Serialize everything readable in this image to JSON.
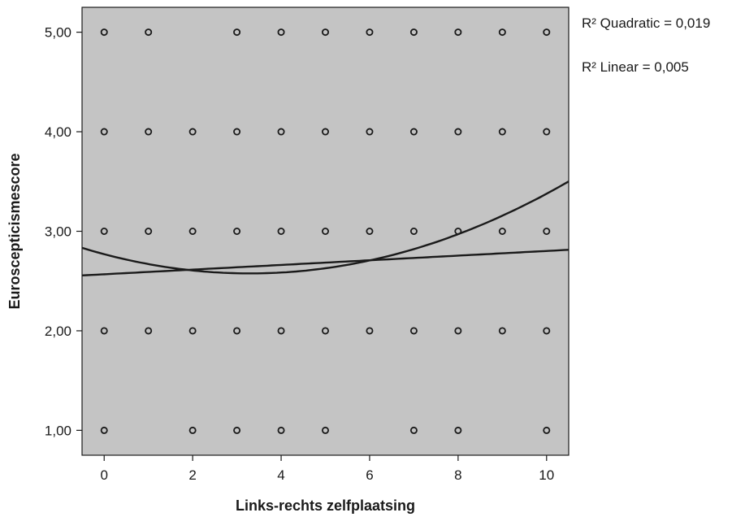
{
  "chart_data": {
    "type": "scatter",
    "xlabel": "Links-rechts zelfplaatsing",
    "ylabel": "Euroscepticismescore",
    "xlim": [
      -0.5,
      10.5
    ],
    "ylim": [
      0.75,
      5.25
    ],
    "x_ticks": [
      0,
      2,
      4,
      6,
      8,
      10
    ],
    "x_tick_labels": [
      "0",
      "2",
      "4",
      "6",
      "8",
      "10"
    ],
    "y_ticks": [
      1,
      2,
      3,
      4,
      5
    ],
    "y_tick_labels": [
      "1,00",
      "2,00",
      "3,00",
      "4,00",
      "5,00"
    ],
    "points": [
      {
        "x": 0,
        "y": 5
      },
      {
        "x": 1,
        "y": 5
      },
      {
        "x": 3,
        "y": 5
      },
      {
        "x": 4,
        "y": 5
      },
      {
        "x": 5,
        "y": 5
      },
      {
        "x": 6,
        "y": 5
      },
      {
        "x": 7,
        "y": 5
      },
      {
        "x": 8,
        "y": 5
      },
      {
        "x": 9,
        "y": 5
      },
      {
        "x": 10,
        "y": 5
      },
      {
        "x": 0,
        "y": 4
      },
      {
        "x": 1,
        "y": 4
      },
      {
        "x": 2,
        "y": 4
      },
      {
        "x": 3,
        "y": 4
      },
      {
        "x": 4,
        "y": 4
      },
      {
        "x": 5,
        "y": 4
      },
      {
        "x": 6,
        "y": 4
      },
      {
        "x": 7,
        "y": 4
      },
      {
        "x": 8,
        "y": 4
      },
      {
        "x": 9,
        "y": 4
      },
      {
        "x": 10,
        "y": 4
      },
      {
        "x": 0,
        "y": 3
      },
      {
        "x": 1,
        "y": 3
      },
      {
        "x": 2,
        "y": 3
      },
      {
        "x": 3,
        "y": 3
      },
      {
        "x": 4,
        "y": 3
      },
      {
        "x": 5,
        "y": 3
      },
      {
        "x": 6,
        "y": 3
      },
      {
        "x": 7,
        "y": 3
      },
      {
        "x": 8,
        "y": 3
      },
      {
        "x": 9,
        "y": 3
      },
      {
        "x": 10,
        "y": 3
      },
      {
        "x": 0,
        "y": 2
      },
      {
        "x": 1,
        "y": 2
      },
      {
        "x": 2,
        "y": 2
      },
      {
        "x": 3,
        "y": 2
      },
      {
        "x": 4,
        "y": 2
      },
      {
        "x": 5,
        "y": 2
      },
      {
        "x": 6,
        "y": 2
      },
      {
        "x": 7,
        "y": 2
      },
      {
        "x": 8,
        "y": 2
      },
      {
        "x": 9,
        "y": 2
      },
      {
        "x": 10,
        "y": 2
      },
      {
        "x": 0,
        "y": 1
      },
      {
        "x": 2,
        "y": 1
      },
      {
        "x": 3,
        "y": 1
      },
      {
        "x": 4,
        "y": 1
      },
      {
        "x": 5,
        "y": 1
      },
      {
        "x": 7,
        "y": 1
      },
      {
        "x": 8,
        "y": 1
      },
      {
        "x": 10,
        "y": 1
      }
    ],
    "fit_lines": [
      {
        "kind": "linear",
        "coefficients": [
          2.568,
          0.0234
        ],
        "r2_label": "R² Linear = 0,005"
      },
      {
        "kind": "quadratic",
        "coefficients": [
          2.77,
          -0.1174,
          0.01781
        ],
        "r2_label": "R² Quadratic = 0,019"
      }
    ],
    "legend_placement": "right",
    "colors": {
      "plot_background": "#c4c4c4",
      "marks": "#1a1a1a",
      "page_background": "#ffffff"
    }
  }
}
